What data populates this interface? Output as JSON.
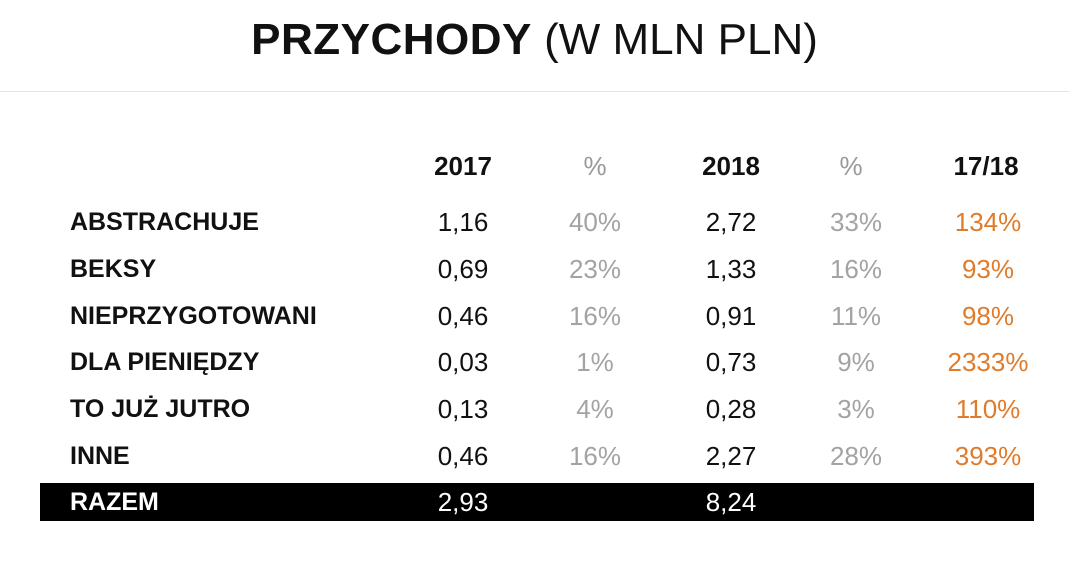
{
  "title_bold": "PRZYCHODY",
  "title_rest": "(W MLN PLN)",
  "colors": {
    "growth": "#e07b2a",
    "percent": "#a3a3a3",
    "total_bar": "#000000"
  },
  "chart_data": {
    "type": "table",
    "title": "PRZYCHODY (W MLN PLN)",
    "columns": [
      "2017",
      "%",
      "2018",
      "%",
      "17/18"
    ],
    "rows": [
      {
        "label": "ABSTRACHUJE",
        "v2017": "1,16",
        "p2017": "40%",
        "v2018": "2,72",
        "p2018": "33%",
        "growth": "134%"
      },
      {
        "label": "BEKSY",
        "v2017": "0,69",
        "p2017": "23%",
        "v2018": "1,33",
        "p2018": "16%",
        "growth": "93%"
      },
      {
        "label": "NIEPRZYGOTOWANI",
        "v2017": "0,46",
        "p2017": "16%",
        "v2018": "0,91",
        "p2018": "11%",
        "growth": "98%"
      },
      {
        "label": "DLA PIENIĘDZY",
        "v2017": "0,03",
        "p2017": "1%",
        "v2018": "0,73",
        "p2018": "9%",
        "growth": "2333%"
      },
      {
        "label": "TO JUŻ JUTRO",
        "v2017": "0,13",
        "p2017": "4%",
        "v2018": "0,28",
        "p2018": "3%",
        "growth": "110%"
      },
      {
        "label": "INNE",
        "v2017": "0,46",
        "p2017": "16%",
        "v2018": "2,27",
        "p2018": "28%",
        "growth": "393%"
      }
    ],
    "total": {
      "label": "RAZEM",
      "v2017": "2,93",
      "v2018": "8,24"
    }
  }
}
